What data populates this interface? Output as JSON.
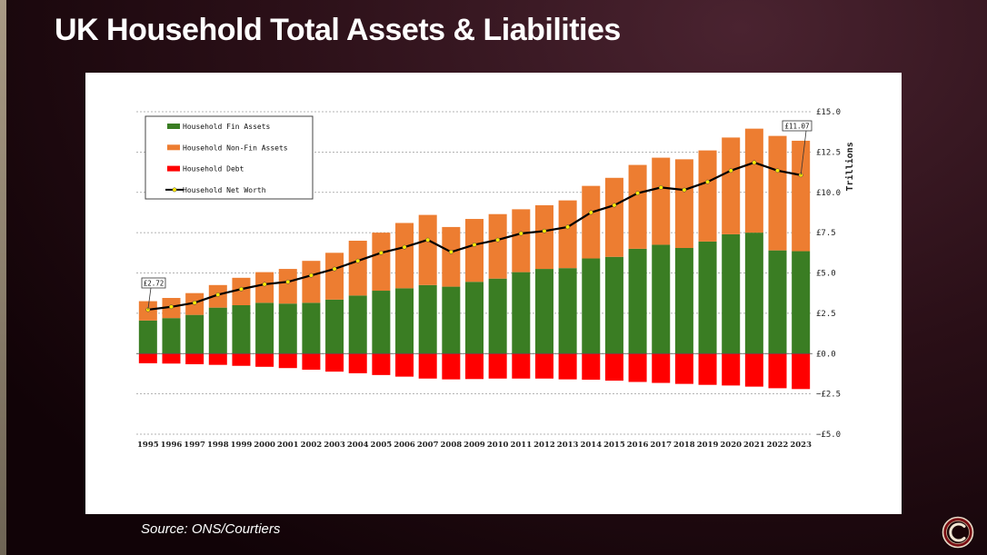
{
  "slide": {
    "title": "UK Household Total Assets & Liabilities",
    "source": "Source: ONS/Courtiers"
  },
  "logo": {
    "icon": "courtiers-logo-icon"
  },
  "colors": {
    "fin_assets": "#3a7d23",
    "non_fin_assets": "#ed7d31",
    "debt": "#ff0000",
    "net_worth_line": "#000000",
    "net_worth_marker": "#ffea00"
  },
  "chart_data": {
    "type": "bar",
    "stacked": true,
    "categories": [
      "1995",
      "1996",
      "1997",
      "1998",
      "1999",
      "2000",
      "2001",
      "2002",
      "2003",
      "2004",
      "2005",
      "2006",
      "2007",
      "2008",
      "2009",
      "2010",
      "2011",
      "2012",
      "2013",
      "2014",
      "2015",
      "2016",
      "2017",
      "2018",
      "2019",
      "2020",
      "2021",
      "2022",
      "2023"
    ],
    "series": [
      {
        "name": "Household Fin Assets",
        "kind": "bar",
        "color": "#3a7d23",
        "values": [
          2.05,
          2.2,
          2.4,
          2.85,
          3.0,
          3.15,
          3.1,
          3.15,
          3.35,
          3.6,
          3.9,
          4.05,
          4.25,
          4.15,
          4.45,
          4.65,
          5.05,
          5.25,
          5.3,
          5.9,
          6.0,
          6.5,
          6.75,
          6.55,
          6.95,
          7.4,
          7.5,
          6.4,
          6.35
        ]
      },
      {
        "name": "Household Non-Fin Assets",
        "kind": "bar",
        "color": "#ed7d31",
        "values": [
          1.2,
          1.25,
          1.35,
          1.4,
          1.7,
          1.9,
          2.15,
          2.6,
          2.9,
          3.4,
          3.6,
          4.05,
          4.35,
          3.7,
          3.9,
          4.0,
          3.9,
          3.95,
          4.2,
          4.5,
          4.9,
          5.2,
          5.4,
          5.5,
          5.65,
          6.0,
          6.45,
          7.1,
          6.85
        ]
      },
      {
        "name": "Household Debt",
        "kind": "bar",
        "color": "#ff0000",
        "values": [
          -0.6,
          -0.62,
          -0.66,
          -0.7,
          -0.76,
          -0.82,
          -0.9,
          -1.0,
          -1.12,
          -1.22,
          -1.33,
          -1.43,
          -1.55,
          -1.6,
          -1.58,
          -1.55,
          -1.55,
          -1.55,
          -1.6,
          -1.62,
          -1.68,
          -1.76,
          -1.82,
          -1.88,
          -1.94,
          -1.98,
          -2.05,
          -2.15,
          -2.2
        ]
      },
      {
        "name": "Household Net Worth",
        "kind": "line",
        "color": "#000000",
        "marker_color": "#ffea00",
        "values": [
          2.72,
          2.9,
          3.15,
          3.65,
          4.0,
          4.3,
          4.45,
          4.85,
          5.25,
          5.75,
          6.25,
          6.6,
          7.05,
          6.3,
          6.75,
          7.05,
          7.45,
          7.6,
          7.85,
          8.75,
          9.2,
          9.95,
          10.3,
          10.15,
          10.65,
          11.35,
          11.85,
          11.35,
          11.07
        ]
      }
    ],
    "annotations": [
      {
        "category": "1995",
        "label": "£2.72"
      },
      {
        "category": "2023",
        "label": "£11.07"
      }
    ],
    "ylim": [
      -5,
      15
    ],
    "y_ticks": [
      15,
      12.5,
      10,
      7.5,
      5,
      2.5,
      0,
      -2.5,
      -5
    ],
    "y_tick_labels": [
      "£15.0",
      "£12.5",
      "£10.0",
      "£7.5",
      "£5.0",
      "£2.5",
      "£0.0",
      "−£2.5",
      "−£5.0"
    ],
    "ylabel": "Trillions",
    "xlabel": "",
    "y_axis_side": "right",
    "grid": true,
    "legend_position": "top-left"
  }
}
